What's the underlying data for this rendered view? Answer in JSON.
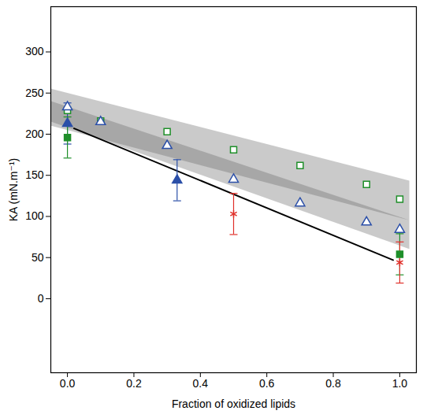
{
  "chart_data": {
    "type": "scatter",
    "x_label": "Fraction of oxidized lipids",
    "y_label": "KA (mN.m⁻¹)",
    "xlim": [
      -0.05,
      1.05
    ],
    "ylim": [
      -90,
      355
    ],
    "xticks": [
      {
        "value": 0,
        "label": "0.0"
      },
      {
        "value": 0.2,
        "label": "0.2"
      },
      {
        "value": 0.4,
        "label": "0.4"
      },
      {
        "value": 0.6,
        "label": "0.6"
      },
      {
        "value": 0.8,
        "label": "0.8"
      },
      {
        "value": 1,
        "label": "1.0"
      }
    ],
    "yticks": [
      0,
      50,
      100,
      150,
      200,
      250,
      300
    ],
    "series": [
      {
        "type": "area",
        "color": "#666666",
        "x": [
          -0.05,
          1.03
        ],
        "values": [
          255,
          143
        ],
        "lower": [
          210,
          95
        ]
      },
      {
        "type": "area",
        "color": "#666666",
        "x": [
          -0.05,
          1.03
        ],
        "values": [
          240,
          95
        ],
        "lower": [
          215,
          60
        ]
      },
      {
        "type": "line",
        "color": "#000000",
        "line_style": "solid",
        "x": [
          0.02,
          0.98
        ],
        "values": [
          207,
          47
        ]
      },
      {
        "type": "scatter",
        "color": "#1f8f2a",
        "marker": "open-square",
        "x": [
          0,
          0.1,
          0.3,
          0.5,
          0.7,
          0.9,
          1.0
        ],
        "values": [
          229,
          216,
          203,
          181,
          162,
          139,
          121
        ]
      },
      {
        "type": "scatter",
        "color": "#2b4fa8",
        "marker": "open-triangle",
        "x": [
          0,
          0.1,
          0.3,
          0.5,
          0.7,
          0.9,
          1.0
        ],
        "values": [
          233,
          215,
          186,
          145,
          116,
          93,
          84
        ]
      },
      {
        "type": "scatter",
        "color": "#2b4fa8",
        "marker": "triangle",
        "x": [
          0,
          0.33
        ],
        "values": [
          213,
          144
        ],
        "errors": [
          25,
          25
        ]
      },
      {
        "type": "scatter",
        "color": "#1f8f2a",
        "marker": "square",
        "x": [
          0,
          1.0
        ],
        "values": [
          196,
          54
        ],
        "errors": [
          25,
          25
        ]
      },
      {
        "type": "scatter",
        "color": "#e0302a",
        "marker": "asterisk",
        "x": [
          0.5,
          1.0
        ],
        "values": [
          103,
          44
        ],
        "errors": [
          25,
          25
        ]
      }
    ]
  }
}
